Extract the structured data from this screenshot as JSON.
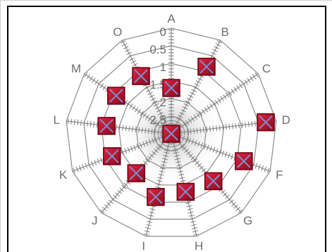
{
  "chart_data": {
    "type": "radar",
    "categories": [
      "A",
      "B",
      "C",
      "D",
      "F",
      "G",
      "H",
      "I",
      "J",
      "K",
      "L",
      "M",
      "O"
    ],
    "tick_labels": [
      "0",
      "0.5",
      "1",
      "1.5",
      "2",
      "2.5"
    ],
    "rlim": [
      0,
      3
    ],
    "series": [
      {
        "values": [
          1.7,
          0.85,
          3,
          0.3,
          0.8,
          1.2,
          1.3,
          1.15,
          1.5,
          1.2,
          1.15,
          1.1,
          1.15
        ]
      }
    ],
    "marker_color": "#c8102e",
    "marker_cross_color": "#7a8fd0",
    "grid_color": "#8c8c8c",
    "grid": true
  }
}
